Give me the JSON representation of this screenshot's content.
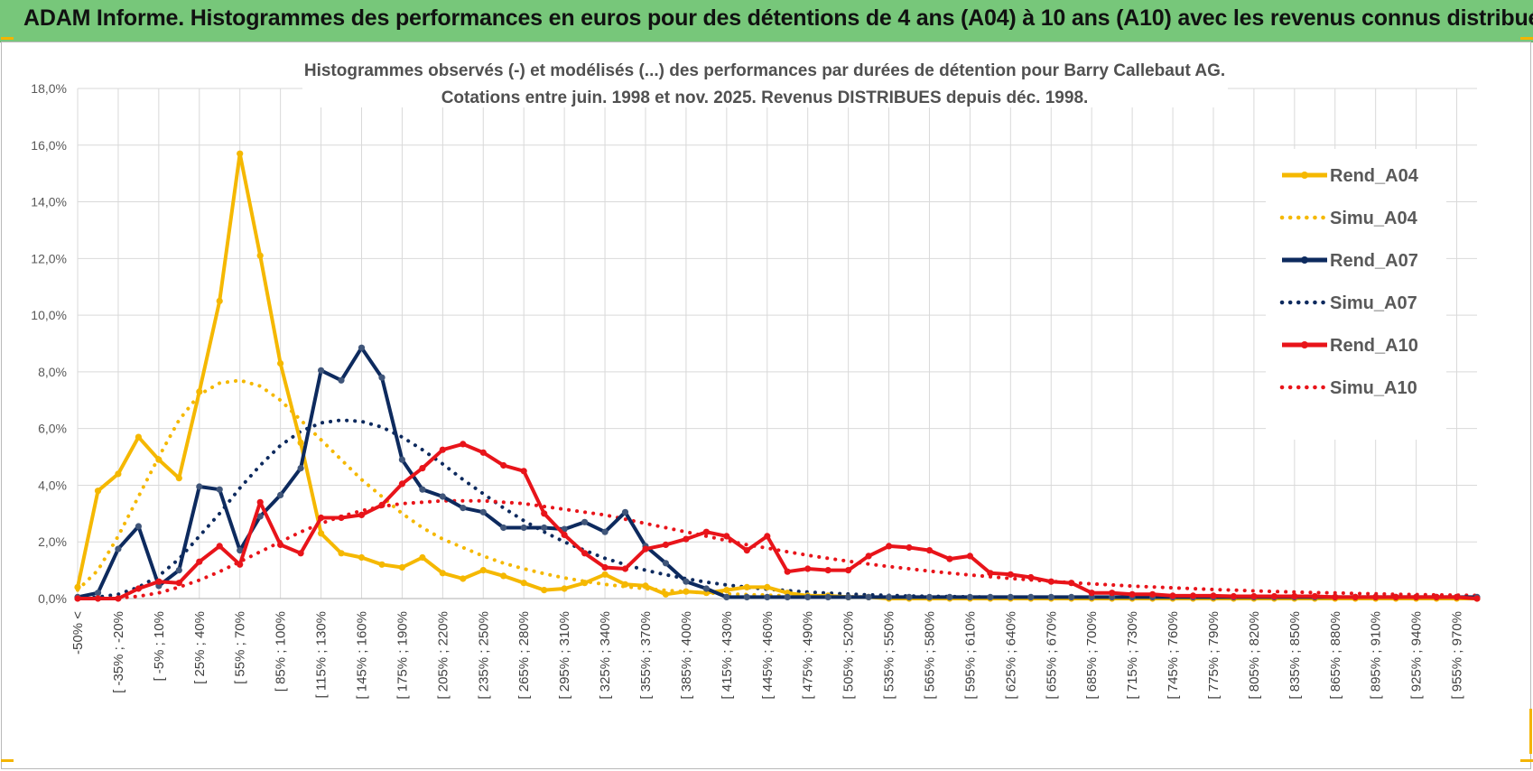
{
  "banner": {
    "title": "ADAM Informe. Histogrammes des performances en euros pour des détentions de 4 ans (A04) à 10 ans (A10) avec les revenus connus distribués"
  },
  "chart_data": {
    "type": "line",
    "title_line1": "Histogrammes observés (-) et modélisés (...) des performances par durées de détention pour Barry  Callebaut AG.",
    "title_line2": "Cotations entre juin. 1998 et nov. 2025. Revenus DISTRIBUES depuis déc. 1998.",
    "ylim": [
      0,
      18
    ],
    "y_ticks": [
      "0,0%",
      "2,0%",
      "4,0%",
      "6,0%",
      "8,0%",
      "10,0%",
      "12,0%",
      "14,0%",
      "16,0%",
      "18,0%"
    ],
    "x_labels": [
      "-50% <",
      "[ -35% ; -20%",
      "[ -5% ; 10%",
      "[ 25% ; 40%",
      "[ 55% ; 70%",
      "[ 85% ; 100%",
      "[ 115% ; 130%",
      "[ 145% ; 160%",
      "[ 175% ; 190%",
      "[ 205% ; 220%",
      "[ 235% ; 250%",
      "[ 265% ; 280%",
      "[ 295% ; 310%",
      "[ 325% ; 340%",
      "[ 355% ; 370%",
      "[ 385% ; 400%",
      "[ 415% ; 430%",
      "[ 445% ; 460%",
      "[ 475% ; 490%",
      "[ 505% ; 520%",
      "[ 535% ; 550%",
      "[ 565% ; 580%",
      "[ 595% ; 610%",
      "[ 625% ; 640%",
      "[ 655% ; 670%",
      "[ 685% ; 700%",
      "[ 715% ; 730%",
      "[ 745% ; 760%",
      "[ 775% ; 790%",
      "[ 805% ; 820%",
      "[ 835% ; 850%",
      "[ 865% ; 880%",
      "[ 895% ; 910%",
      "[ 925% ; 940%",
      "[ 955% ; 970%"
    ],
    "n_points": 70,
    "series": [
      {
        "name": "Rend_A04",
        "color": "#f5b800",
        "style": "solid",
        "values": [
          0.4,
          3.8,
          4.4,
          5.7,
          4.9,
          4.25,
          7.3,
          10.5,
          15.7,
          12.1,
          8.3,
          5.5,
          2.3,
          1.6,
          1.45,
          1.2,
          1.1,
          1.45,
          0.9,
          0.7,
          1.0,
          0.8,
          0.55,
          0.3,
          0.35,
          0.55,
          0.85,
          0.5,
          0.45,
          0.15,
          0.25,
          0.2,
          0.3,
          0.4,
          0.4,
          0.2,
          0.1,
          0.1,
          0.05,
          0.05,
          0.0,
          0.0,
          0.0,
          0.0,
          0.0,
          0.0,
          0.0,
          0.0,
          0.0,
          0.0,
          0.0,
          0.0,
          0.0,
          0.0,
          0.0,
          0.0,
          0.0,
          0.0,
          0.0,
          0.0,
          0.0,
          0.0,
          0.0,
          0.0,
          0.0,
          0.0,
          0.0,
          0.0,
          0.0,
          0.0
        ]
      },
      {
        "name": "Simu_A04",
        "color": "#f5b800",
        "style": "dotted",
        "values": [
          0.3,
          1.0,
          2.2,
          3.6,
          5.0,
          6.3,
          7.2,
          7.6,
          7.7,
          7.5,
          7.0,
          6.3,
          5.6,
          4.9,
          4.2,
          3.6,
          3.0,
          2.5,
          2.1,
          1.8,
          1.5,
          1.25,
          1.05,
          0.88,
          0.73,
          0.61,
          0.5,
          0.42,
          0.35,
          0.29,
          0.24,
          0.2,
          0.17,
          0.14,
          0.12,
          0.1,
          0.08,
          0.07,
          0.06,
          0.05,
          0.04,
          0.03,
          0.03,
          0.02,
          0.02,
          0.02,
          0.01,
          0.01,
          0.01,
          0.01,
          0.0,
          0.0,
          0.0,
          0.0,
          0.0,
          0.0,
          0.0,
          0.0,
          0.0,
          0.0,
          0.0,
          0.0,
          0.0,
          0.0,
          0.0,
          0.0,
          0.0,
          0.0,
          0.0,
          0.0
        ]
      },
      {
        "name": "Rend_A07",
        "color": "#0d2a5e",
        "style": "solid",
        "values": [
          0.05,
          0.2,
          1.75,
          2.55,
          0.45,
          1.0,
          3.95,
          3.85,
          1.7,
          2.9,
          3.65,
          4.6,
          8.05,
          7.7,
          8.85,
          7.8,
          4.9,
          3.85,
          3.6,
          3.2,
          3.05,
          2.5,
          2.5,
          2.5,
          2.45,
          2.7,
          2.35,
          3.05,
          1.85,
          1.25,
          0.6,
          0.35,
          0.05,
          0.05,
          0.05,
          0.05,
          0.05,
          0.05,
          0.05,
          0.05,
          0.05,
          0.05,
          0.05,
          0.05,
          0.05,
          0.05,
          0.05,
          0.05,
          0.05,
          0.05,
          0.05,
          0.05,
          0.05,
          0.05,
          0.05,
          0.05,
          0.05,
          0.05,
          0.05,
          0.05,
          0.05,
          0.05,
          0.05,
          0.05,
          0.05,
          0.05,
          0.05,
          0.05,
          0.05,
          0.05
        ]
      },
      {
        "name": "Simu_A07",
        "color": "#0d2a5e",
        "style": "dotted",
        "values": [
          0.0,
          0.05,
          0.15,
          0.4,
          0.8,
          1.4,
          2.2,
          3.0,
          3.9,
          4.7,
          5.4,
          5.9,
          6.2,
          6.3,
          6.25,
          6.05,
          5.7,
          5.25,
          4.75,
          4.2,
          3.7,
          3.2,
          2.75,
          2.35,
          2.0,
          1.7,
          1.42,
          1.2,
          1.0,
          0.84,
          0.7,
          0.58,
          0.48,
          0.4,
          0.33,
          0.28,
          0.23,
          0.19,
          0.16,
          0.13,
          0.11,
          0.09,
          0.08,
          0.07,
          0.06,
          0.05,
          0.04,
          0.03,
          0.03,
          0.02,
          0.02,
          0.02,
          0.01,
          0.01,
          0.01,
          0.01,
          0.01,
          0.0,
          0.0,
          0.0,
          0.0,
          0.0,
          0.0,
          0.0,
          0.0,
          0.0,
          0.0,
          0.0,
          0.0,
          0.0
        ]
      },
      {
        "name": "Rend_A10",
        "color": "#e8141a",
        "style": "solid",
        "values": [
          0.0,
          0.0,
          0.0,
          0.35,
          0.6,
          0.55,
          1.3,
          1.85,
          1.2,
          3.4,
          1.9,
          1.6,
          2.85,
          2.85,
          2.95,
          3.3,
          4.05,
          4.6,
          5.25,
          5.45,
          5.15,
          4.7,
          4.5,
          3.0,
          2.25,
          1.6,
          1.1,
          1.05,
          1.75,
          1.9,
          2.1,
          2.35,
          2.2,
          1.7,
          2.2,
          0.95,
          1.05,
          1.0,
          1.0,
          1.5,
          1.85,
          1.8,
          1.7,
          1.4,
          1.5,
          0.9,
          0.85,
          0.75,
          0.6,
          0.55,
          0.2,
          0.2,
          0.15,
          0.15,
          0.1,
          0.1,
          0.1,
          0.08,
          0.08,
          0.08,
          0.08,
          0.08,
          0.05,
          0.05,
          0.05,
          0.05,
          0.05,
          0.05,
          0.05,
          0.0
        ]
      },
      {
        "name": "Simu_A10",
        "color": "#e8141a",
        "style": "dotted",
        "values": [
          0.0,
          0.0,
          0.02,
          0.08,
          0.2,
          0.4,
          0.65,
          0.95,
          1.3,
          1.65,
          2.0,
          2.35,
          2.65,
          2.9,
          3.1,
          3.25,
          3.35,
          3.4,
          3.45,
          3.45,
          3.45,
          3.4,
          3.35,
          3.25,
          3.15,
          3.05,
          2.95,
          2.8,
          2.65,
          2.5,
          2.35,
          2.2,
          2.05,
          1.9,
          1.78,
          1.65,
          1.53,
          1.42,
          1.32,
          1.22,
          1.13,
          1.05,
          0.97,
          0.9,
          0.83,
          0.77,
          0.71,
          0.66,
          0.61,
          0.56,
          0.52,
          0.48,
          0.44,
          0.41,
          0.38,
          0.35,
          0.32,
          0.3,
          0.27,
          0.25,
          0.23,
          0.21,
          0.2,
          0.18,
          0.17,
          0.15,
          0.14,
          0.13,
          0.12,
          0.11
        ]
      }
    ]
  }
}
